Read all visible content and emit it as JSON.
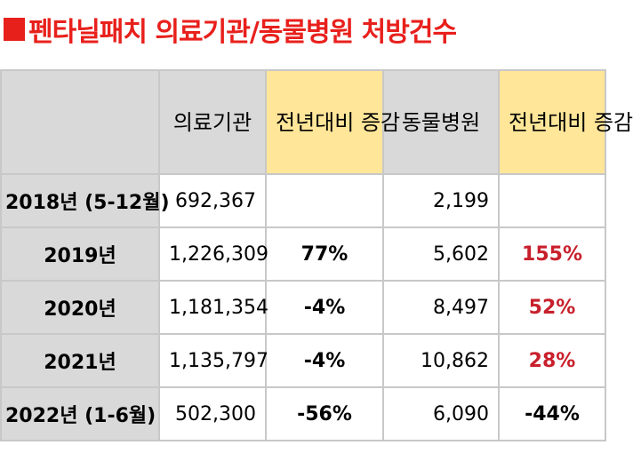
{
  "header": {
    "title": "펜타닐패치 의료기관/동물병원 처방건수"
  },
  "table": {
    "columns": [
      null,
      "의료기관",
      "전년대비 증감",
      "동물병원",
      "전년대비 증감"
    ],
    "rows": [
      [
        "2018년 (5-12월)",
        "692,367",
        null,
        "2,199",
        null
      ],
      [
        "2019년",
        "1,226,309",
        "77%",
        "5,602",
        "155%"
      ],
      [
        "2020년",
        "1,181,354",
        "-4%",
        "8,497",
        "52%"
      ],
      [
        "2021년",
        "1,135,797",
        "-4%",
        "10,862",
        "28%"
      ],
      [
        "2022년 (1-6월)",
        "502,300",
        "-56%",
        "6,090",
        "-44%"
      ]
    ]
  }
}
